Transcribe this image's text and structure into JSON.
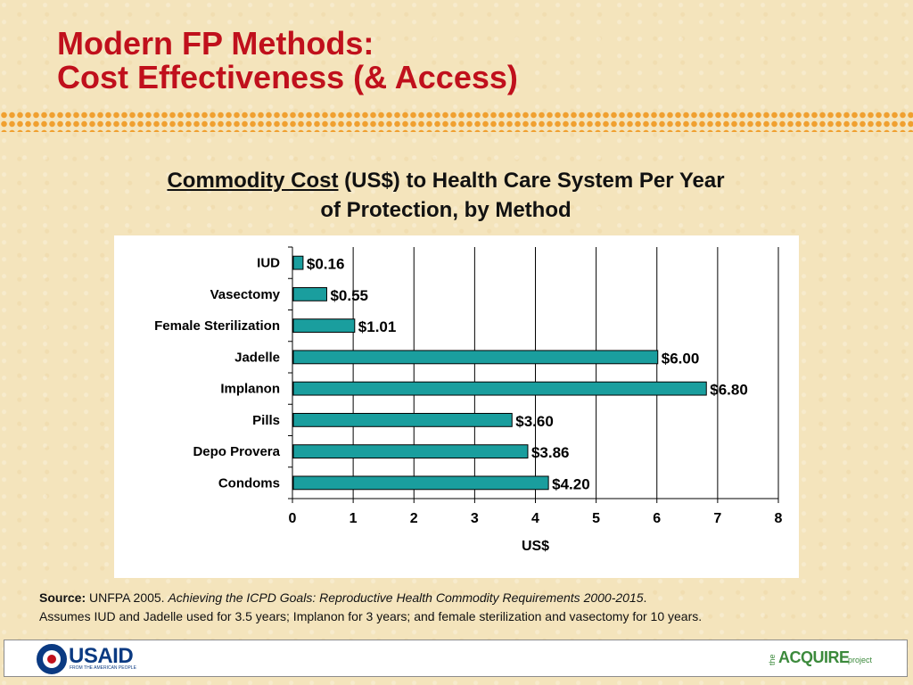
{
  "slide": {
    "title_line1": "Modern FP Methods:",
    "title_line2": "Cost Effectiveness (& Access)"
  },
  "chart_data": {
    "type": "bar",
    "orientation": "horizontal",
    "title_underlined": "Commodity Cost",
    "title_rest_line1": " (US$) to Health Care System Per Year",
    "title_line2": "of Protection, by Method",
    "categories": [
      "IUD",
      "Vasectomy",
      "Female Sterilization",
      "Jadelle",
      "Implanon",
      "Pills",
      "Depo Provera",
      "Condoms"
    ],
    "values": [
      0.16,
      0.55,
      1.01,
      6.0,
      6.8,
      3.6,
      3.86,
      4.2
    ],
    "data_labels": [
      "$0.16",
      "$0.55",
      "$1.01",
      "$6.00",
      "$6.80",
      "$3.60",
      "$3.86",
      "$4.20"
    ],
    "xlabel": "US$",
    "ylabel": "",
    "xlim": [
      0,
      8
    ],
    "x_ticks": [
      "0",
      "1",
      "2",
      "3",
      "4",
      "5",
      "6",
      "7",
      "8"
    ],
    "grid": true,
    "legend": "none",
    "bar_color": "#1a9e9e"
  },
  "source": {
    "label": "Source:",
    "text_plain": " UNFPA 2005. ",
    "text_italic": "Achieving the ICPD Goals: Reproductive Health Commodity Requirements 2000-2015",
    "text_end": ".",
    "note": "Assumes IUD and Jadelle used for 3.5 years; Implanon for 3 years; and female sterilization and vasectomy for 10 years."
  },
  "footer": {
    "usaid_logo_text": "USAID",
    "usaid_tagline": "FROM THE AMERICAN PEOPLE",
    "acquire_the": "the",
    "acquire_word": "ACQUIRE",
    "acquire_project": "project"
  },
  "colors": {
    "title": "#c0101c",
    "background": "#f4e4bc",
    "dots": "#f0a030"
  }
}
